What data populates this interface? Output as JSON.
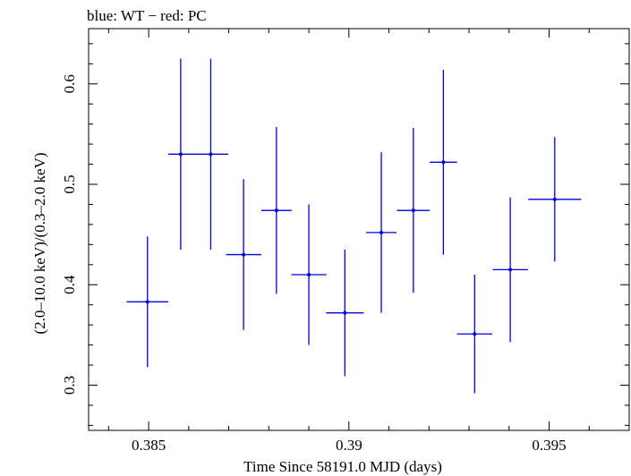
{
  "chart_data": {
    "type": "scatter",
    "title": "blue: WT − red: PC",
    "xlabel": "Time Since 58191.0 MJD (days)",
    "ylabel": "(2.0–10.0 keV)/(0.3–2.0 keV)",
    "xlim": [
      0.3835,
      0.397
    ],
    "ylim": [
      0.255,
      0.655
    ],
    "xticks": [
      0.385,
      0.39,
      0.395
    ],
    "xtick_labels": [
      "0.385",
      "0.39",
      "0.395"
    ],
    "yticks": [
      0.3,
      0.4,
      0.5,
      0.6
    ],
    "ytick_labels": [
      "0.3",
      "0.4",
      "0.5",
      "0.6"
    ],
    "grid": false,
    "series": [
      {
        "color": "#0000dd",
        "points": [
          {
            "x": 0.38497,
            "xerr": 0.00052,
            "y": 0.383,
            "yerr_lo": 0.065,
            "yerr_hi": 0.065
          },
          {
            "x": 0.3858,
            "xerr": 0.00031,
            "y": 0.53,
            "yerr_lo": 0.095,
            "yerr_hi": 0.095
          },
          {
            "x": 0.38655,
            "xerr": 0.00044,
            "y": 0.53,
            "yerr_lo": 0.095,
            "yerr_hi": 0.095
          },
          {
            "x": 0.38737,
            "xerr": 0.00044,
            "y": 0.43,
            "yerr_lo": 0.075,
            "yerr_hi": 0.075
          },
          {
            "x": 0.38819,
            "xerr": 0.00038,
            "y": 0.474,
            "yerr_lo": 0.083,
            "yerr_hi": 0.083
          },
          {
            "x": 0.389,
            "xerr": 0.00044,
            "y": 0.41,
            "yerr_lo": 0.07,
            "yerr_hi": 0.07
          },
          {
            "x": 0.3899,
            "xerr": 0.00047,
            "y": 0.372,
            "yerr_lo": 0.063,
            "yerr_hi": 0.063
          },
          {
            "x": 0.39081,
            "xerr": 0.00038,
            "y": 0.452,
            "yerr_lo": 0.08,
            "yerr_hi": 0.08
          },
          {
            "x": 0.39161,
            "xerr": 0.00041,
            "y": 0.474,
            "yerr_lo": 0.082,
            "yerr_hi": 0.082
          },
          {
            "x": 0.39236,
            "xerr": 0.00034,
            "y": 0.522,
            "yerr_lo": 0.092,
            "yerr_hi": 0.092
          },
          {
            "x": 0.39314,
            "xerr": 0.00044,
            "y": 0.351,
            "yerr_lo": 0.059,
            "yerr_hi": 0.059
          },
          {
            "x": 0.39403,
            "xerr": 0.00044,
            "y": 0.415,
            "yerr_lo": 0.072,
            "yerr_hi": 0.072
          },
          {
            "x": 0.39514,
            "xerr": 0.00066,
            "y": 0.485,
            "yerr_lo": 0.062,
            "yerr_hi": 0.062
          }
        ]
      }
    ]
  }
}
